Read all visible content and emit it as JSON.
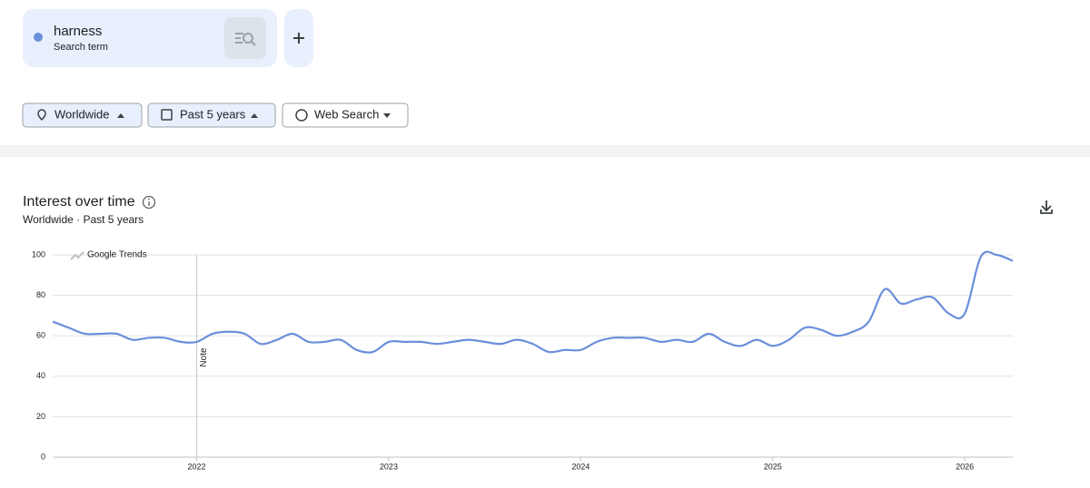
{
  "search": {
    "kind": "Search term"
  },
  "filters": [
    "Worldwide",
    "Past 5 years",
    "Web Search"
  ],
  "chart_data": {
    "type": "line",
    "title": "Interest over time",
    "subtitle": "Worldwide · Past 5 years",
    "watermark": "Google Trends",
    "annotations": [
      {
        "x": 2022,
        "label": "Note"
      }
    ],
    "x": [
      2021.25,
      2021.333,
      2021.417,
      2021.5,
      2021.583,
      2021.667,
      2021.75,
      2021.833,
      2021.917,
      2022,
      2022.083,
      2022.167,
      2022.25,
      2022.333,
      2022.417,
      2022.5,
      2022.583,
      2022.667,
      2022.75,
      2022.833,
      2022.917,
      2023,
      2023.083,
      2023.167,
      2023.25,
      2023.333,
      2023.417,
      2023.5,
      2023.583,
      2023.667,
      2023.75,
      2023.833,
      2023.917,
      2024,
      2024.083,
      2024.167,
      2024.25,
      2024.333,
      2024.417,
      2024.5,
      2024.583,
      2024.667,
      2024.75,
      2024.833,
      2024.917,
      2025,
      2025.083,
      2025.167,
      2025.25,
      2025.333,
      2025.417,
      2025.5,
      2025.583,
      2025.667,
      2025.75,
      2025.833,
      2025.917,
      2026,
      2026.083,
      2026.167,
      2026.25
    ],
    "series": [
      {
        "name": "harness",
        "color": "#6a8fdb",
        "values": [
          67,
          64,
          61,
          61,
          61,
          58,
          59,
          59,
          57,
          57,
          61,
          62,
          61,
          56,
          58,
          61,
          57,
          57,
          58,
          53,
          52,
          57,
          57,
          57,
          56,
          57,
          58,
          57,
          56,
          58,
          56,
          52,
          53,
          53,
          57,
          59,
          59,
          59,
          57,
          58,
          57,
          61,
          57,
          55,
          58,
          55,
          58,
          64,
          63,
          60,
          62,
          67,
          83,
          76,
          78,
          79,
          71,
          71,
          99,
          100,
          97
        ]
      }
    ],
    "xlim": [
      2021.25,
      2026.25
    ],
    "xticks": [
      2022,
      2023,
      2024,
      2025,
      2026
    ],
    "ylim": [
      0,
      100
    ],
    "yticks": [
      0,
      20,
      40,
      60,
      80,
      100
    ],
    "grid": true
  }
}
